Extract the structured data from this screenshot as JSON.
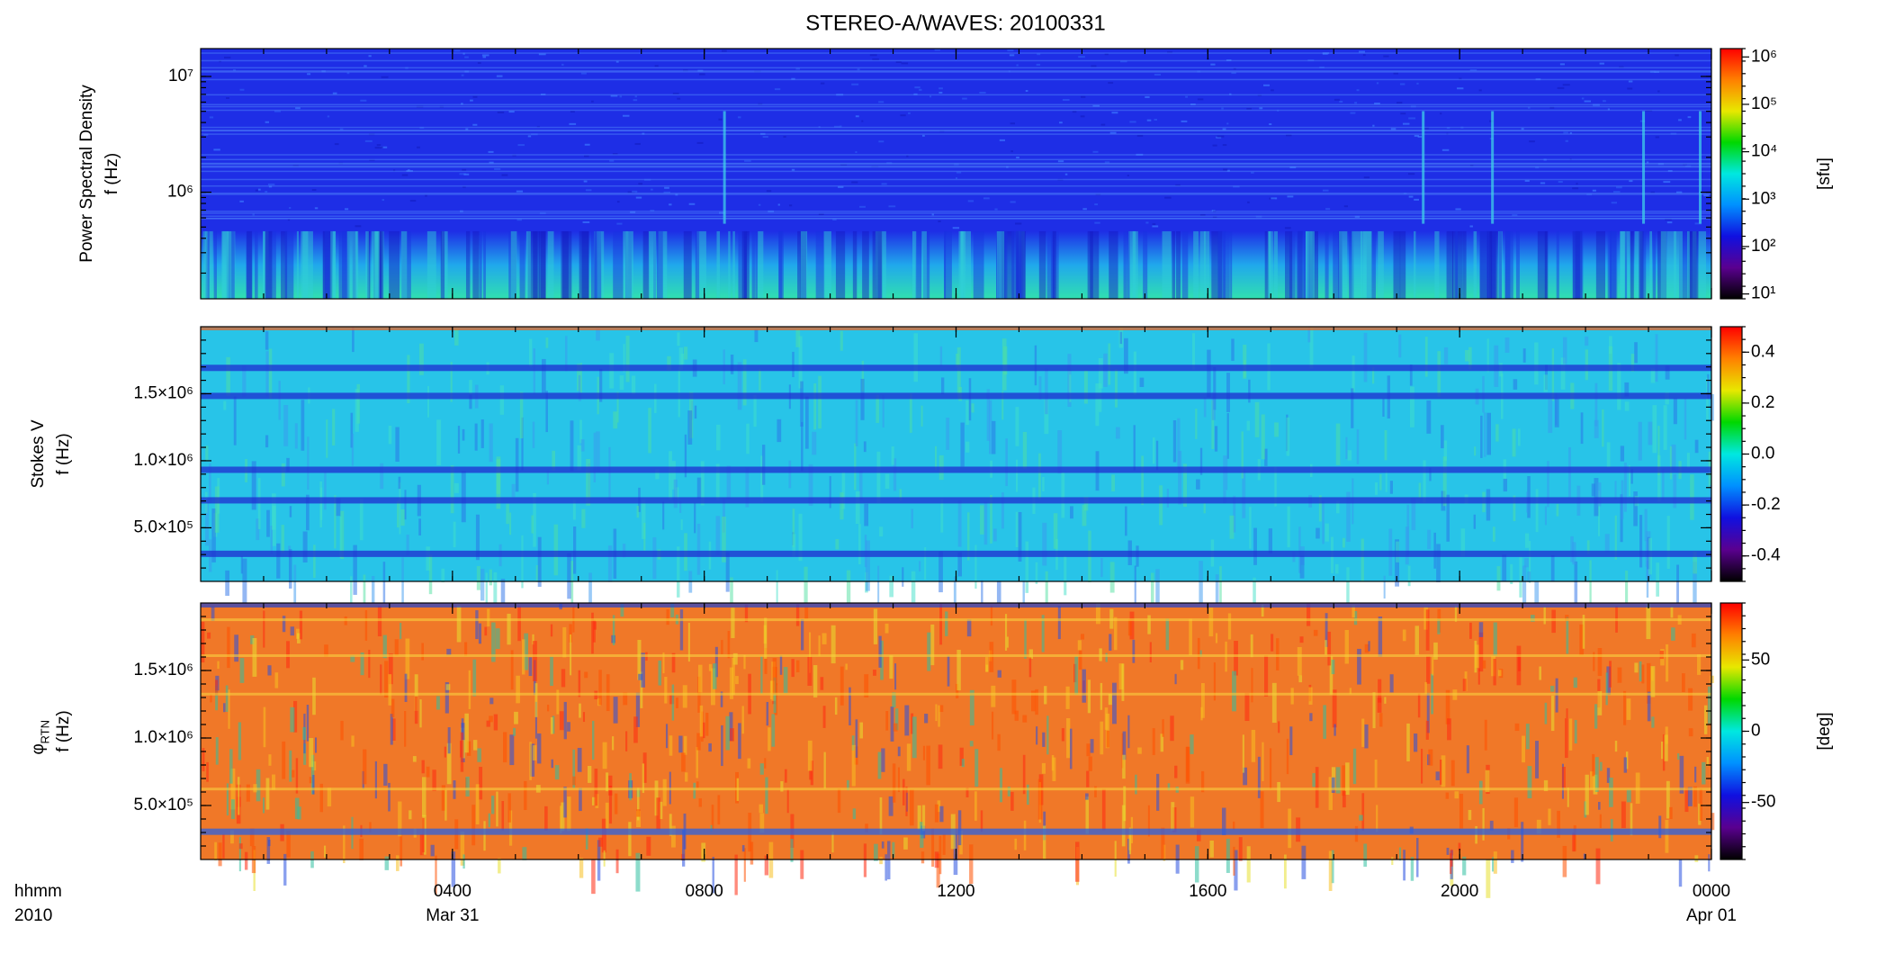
{
  "chart_data": [
    {
      "type": "spectrogram",
      "title": "STEREO-A/WAVES: 20100331",
      "ylabel_lines": [
        "Power Spectral Density",
        "f (Hz)"
      ],
      "log_y": true,
      "ylim": [
        120000,
        17400000
      ],
      "yticks": [
        {
          "value": 1000000,
          "label": "10⁶"
        },
        {
          "value": 10000000,
          "label": "10⁷"
        }
      ],
      "colorbar": {
        "label": "[sfu]",
        "log": true,
        "lim": [
          7.9,
          1500000
        ],
        "ticks": [
          {
            "value": 10,
            "label": "10¹"
          },
          {
            "value": 100,
            "label": "10²"
          },
          {
            "value": 1000,
            "label": "10³"
          },
          {
            "value": 10000,
            "label": "10⁴"
          },
          {
            "value": 100000,
            "label": "10⁵"
          },
          {
            "value": 1000000,
            "label": "10⁶"
          }
        ]
      }
    },
    {
      "type": "spectrogram",
      "ylabel_lines": [
        "Stokes V",
        "f (Hz)"
      ],
      "log_y": false,
      "ylim": [
        100000,
        2000000
      ],
      "yticks": [
        {
          "value": 500000,
          "label": "5.0×10⁵"
        },
        {
          "value": 1000000,
          "label": "1.0×10⁶"
        },
        {
          "value": 1500000,
          "label": "1.5×10⁶"
        }
      ],
      "colorbar": {
        "log": false,
        "lim": [
          -0.5,
          0.5
        ],
        "ticks": [
          -0.4,
          -0.2,
          {
            "value": 0,
            "label": "0.0"
          },
          0.2,
          0.4
        ]
      }
    },
    {
      "type": "spectrogram",
      "ylabel_symbol": "φ",
      "ylabel_subscript": "RTN",
      "ylabel": "f (Hz)",
      "log_y": false,
      "ylim": [
        100000,
        2000000
      ],
      "yticks": [
        {
          "value": 500000,
          "label": "5.0×10⁵"
        },
        {
          "value": 1000000,
          "label": "1.0×10⁶"
        },
        {
          "value": 1500000,
          "label": "1.5×10⁶"
        }
      ],
      "colorbar": {
        "label": "[deg]",
        "log": false,
        "lim": [
          -90,
          90
        ],
        "ticks": [
          -50,
          0,
          50
        ]
      },
      "x_label": "hhmm",
      "year_label": "2010",
      "xlim": [
        0,
        24
      ],
      "xticks": [
        {
          "value": 4,
          "label": "0400"
        },
        {
          "value": 8,
          "label": "0800"
        },
        {
          "value": 12,
          "label": "1200"
        },
        {
          "value": 16,
          "label": "1600"
        },
        {
          "value": 20,
          "label": "2000"
        },
        {
          "value": 24,
          "label": "0000"
        }
      ],
      "xtick_dates": [
        {
          "value": 4,
          "label": "Mar 31"
        },
        {
          "value": 24,
          "label": "Apr 01"
        }
      ],
      "colormap": [
        "#000000",
        "#5a0090",
        "#1010e0",
        "#0090ff",
        "#00e8e0",
        "#00d800",
        "#e8e800",
        "#ff8000",
        "#ff0000"
      ]
    }
  ]
}
